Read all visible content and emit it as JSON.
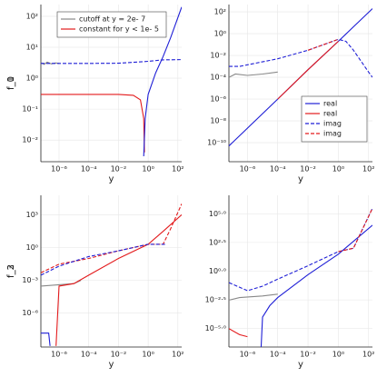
{
  "chart_data": [
    {
      "type": "line",
      "xlabel": "y",
      "ylabel": "f_0",
      "xscale": "log",
      "yscale": "log",
      "grid": true,
      "legend": "top-left",
      "xlim": [
        6e-08,
        180
      ],
      "ylim": [
        0.002,
        240
      ],
      "xticks": [
        {
          "value": 1e-06,
          "label": "10⁻⁶"
        },
        {
          "value": 0.0001,
          "label": "10⁻⁴"
        },
        {
          "value": 0.01,
          "label": "10⁻²"
        },
        {
          "value": 1,
          "label": "10⁰"
        },
        {
          "value": 100,
          "label": "10²"
        }
      ],
      "yticks": [
        {
          "value": 0.01,
          "label": "10⁻²"
        },
        {
          "value": 0.1,
          "label": "10⁻¹"
        },
        {
          "value": 1,
          "label": "10⁰"
        },
        {
          "value": 10,
          "label": "10¹"
        },
        {
          "value": 100,
          "label": "10²"
        }
      ],
      "series": [
        {
          "name": "cutoff at y = 2e- 7",
          "color": "#888888",
          "dash": false,
          "x": [
            6e-08,
            1e-07,
            1.6e-07,
            3e-07,
            6e-07,
            1e-06
          ],
          "values": [
            3.2,
            2.8,
            3.3,
            2.9,
            3.1,
            3.0
          ]
        },
        {
          "name": "constant for y < 1e- 5",
          "color": "#e31a1c",
          "dash": false,
          "x": [
            6e-08,
            1e-05,
            0.01,
            0.1,
            0.3,
            0.5,
            0.56
          ],
          "values": [
            0.3,
            0.3,
            0.3,
            0.28,
            0.2,
            0.05,
            0.004
          ]
        },
        {
          "color": "#1f1fd6",
          "dash": true,
          "x": [
            6e-08,
            0.0001,
            0.01,
            1,
            10,
            180
          ],
          "values": [
            3,
            3,
            3.05,
            3.5,
            3.9,
            4
          ]
        },
        {
          "color": "#1f1fd6",
          "dash": false,
          "x": [
            0.5,
            0.63,
            1,
            3.2,
            10,
            32,
            180
          ],
          "values": [
            0.003,
            0.05,
            0.3,
            1.5,
            5,
            20,
            200
          ]
        }
      ]
    },
    {
      "type": "line",
      "xlabel": "y",
      "ylabel": "f_1",
      "xscale": "log",
      "yscale": "log",
      "grid": true,
      "legend": "bottom-right",
      "xlim": [
        6e-08,
        180
      ],
      "ylim": [
        1.8e-12,
        470
      ],
      "xticks": [
        {
          "value": 1e-06,
          "label": "10⁻⁶"
        },
        {
          "value": 0.0001,
          "label": "10⁻⁴"
        },
        {
          "value": 0.01,
          "label": "10⁻²"
        },
        {
          "value": 1,
          "label": "10⁰"
        },
        {
          "value": 100,
          "label": "10²"
        }
      ],
      "yticks": [
        {
          "value": 1e-10,
          "label": "10⁻¹⁰"
        },
        {
          "value": 1e-08,
          "label": "10⁻⁸"
        },
        {
          "value": 1e-06,
          "label": "10⁻⁶"
        },
        {
          "value": 0.0001,
          "label": "10⁻⁴"
        },
        {
          "value": 0.01,
          "label": "10⁻²"
        },
        {
          "value": 1,
          "label": "10⁰"
        },
        {
          "value": 100,
          "label": "10²"
        }
      ],
      "series": [
        {
          "name": "real",
          "color": "#1f1fd6",
          "dash": false,
          "x": [
            6e-08,
            0.0001,
            0.01,
            1,
            180
          ],
          "values": [
            5e-11,
            1e-06,
            0.0005,
            0.2,
            200
          ]
        },
        {
          "name": "real",
          "color": "#e31a1c",
          "dash": false,
          "x": [
            0.0001,
            0.01,
            1
          ],
          "values": [
            1e-06,
            0.0005,
            0.2
          ]
        },
        {
          "name": "imag",
          "color": "#1f1fd6",
          "dash": true,
          "x": [
            6e-08,
            3e-07,
            0.0001,
            0.01,
            1,
            3.2,
            10,
            100,
            180
          ],
          "values": [
            0.001,
            0.001,
            0.005,
            0.03,
            0.3,
            0.2,
            0.03,
            0.0003,
            0.0001
          ]
        },
        {
          "name": "imag",
          "color": "#e31a1c",
          "dash": true,
          "x": [
            0.01,
            1
          ],
          "values": [
            0.03,
            0.3
          ]
        },
        {
          "color": "#888888",
          "dash": false,
          "x": [
            6e-08,
            1.6e-07,
            1e-06,
            1e-05,
            0.0001
          ],
          "values": [
            0.0001,
            0.0002,
            0.00015,
            0.0002,
            0.0003
          ]
        }
      ]
    },
    {
      "type": "line",
      "xlabel": "y",
      "ylabel": "f_2",
      "xscale": "log",
      "yscale": "log",
      "grid": true,
      "xlim": [
        6e-08,
        180
      ],
      "ylim": [
        8e-10,
        60000
      ],
      "xticks": [
        {
          "value": 1e-06,
          "label": "10⁻⁶"
        },
        {
          "value": 0.0001,
          "label": "10⁻⁴"
        },
        {
          "value": 0.01,
          "label": "10⁻²"
        },
        {
          "value": 1,
          "label": "10⁰"
        },
        {
          "value": 100,
          "label": "10²"
        }
      ],
      "yticks": [
        {
          "value": 1e-06,
          "label": "10⁻⁶"
        },
        {
          "value": 0.001,
          "label": "10⁻³"
        },
        {
          "value": 1,
          "label": "10⁰"
        },
        {
          "value": 1000,
          "label": "10³"
        }
      ],
      "series": [
        {
          "color": "#1f1fd6",
          "dash": false,
          "x": [
            6e-08,
            2e-07,
            2.5e-07
          ],
          "values": [
            1.5e-08,
            1.5e-08,
            1e-09
          ]
        },
        {
          "color": "#888888",
          "dash": false,
          "x": [
            6e-08,
            1e-06,
            1e-05,
            3e-05
          ],
          "values": [
            0.0003,
            0.0004,
            0.0005,
            0.001
          ]
        },
        {
          "color": "#e31a1c",
          "dash": false,
          "x": [
            6.3e-07,
            1e-06,
            1e-05,
            0.0001,
            0.01,
            1,
            10,
            180
          ],
          "values": [
            1e-09,
            0.0003,
            0.0005,
            0.003,
            0.1,
            2,
            30,
            1000
          ]
        },
        {
          "color": "#e31a1c",
          "dash": true,
          "x": [
            6e-08,
            1e-06,
            0.0001,
            0.01,
            1,
            10,
            32,
            180
          ],
          "values": [
            0.005,
            0.03,
            0.1,
            0.5,
            2,
            2,
            50,
            10000
          ]
        },
        {
          "color": "#1f1fd6",
          "dash": true,
          "x": [
            6e-08,
            1e-06,
            0.0001,
            0.01,
            1,
            16
          ],
          "values": [
            0.003,
            0.02,
            0.15,
            0.5,
            2,
            2
          ]
        }
      ]
    },
    {
      "type": "line",
      "xlabel": "y",
      "ylabel": "f_3",
      "xscale": "log",
      "yscale": "log",
      "grid": true,
      "xlim": [
        6e-08,
        180
      ],
      "ylim": [
        2.5e-07,
        4000000
      ],
      "xticks": [
        {
          "value": 1e-06,
          "label": "10⁻⁶"
        },
        {
          "value": 0.0001,
          "label": "10⁻⁴"
        },
        {
          "value": 0.01,
          "label": "10⁻²"
        },
        {
          "value": 1,
          "label": "10⁰"
        },
        {
          "value": 100,
          "label": "10²"
        }
      ],
      "yticks": [
        {
          "value": 1e-05,
          "label": "10⁻⁵·⁰"
        },
        {
          "value": 0.0031623,
          "label": "10⁻²·⁵"
        },
        {
          "value": 1,
          "label": "10⁰·⁰"
        },
        {
          "value": 316.23,
          "label": "10²·⁵"
        },
        {
          "value": 100000,
          "label": "10⁵·⁰"
        }
      ],
      "series": [
        {
          "color": "#e31a1c",
          "dash": false,
          "x": [
            6e-08,
            3e-07,
            1e-06
          ],
          "values": [
            1e-05,
            3e-06,
            2e-06
          ]
        },
        {
          "color": "#888888",
          "dash": false,
          "x": [
            6e-08,
            3e-07,
            1e-05,
            0.0001
          ],
          "values": [
            0.003,
            0.005,
            0.007,
            0.01
          ]
        },
        {
          "color": "#1f1fd6",
          "dash": false,
          "x": [
            8e-06,
            1e-05,
            3e-05,
            0.0001,
            0.01,
            1,
            180
          ],
          "values": [
            2e-07,
            0.0001,
            0.001,
            0.005,
            0.5,
            30,
            10000
          ]
        },
        {
          "color": "#1f1fd6",
          "dash": true,
          "x": [
            6e-08,
            1e-06,
            1e-05,
            0.0001,
            0.01,
            1,
            10,
            180
          ],
          "values": [
            0.1,
            0.02,
            0.05,
            0.2,
            3,
            50,
            100,
            300000
          ]
        },
        {
          "color": "#e31a1c",
          "dash": true,
          "x": [
            1,
            10,
            180
          ],
          "values": [
            50,
            100,
            300000
          ]
        }
      ]
    }
  ]
}
